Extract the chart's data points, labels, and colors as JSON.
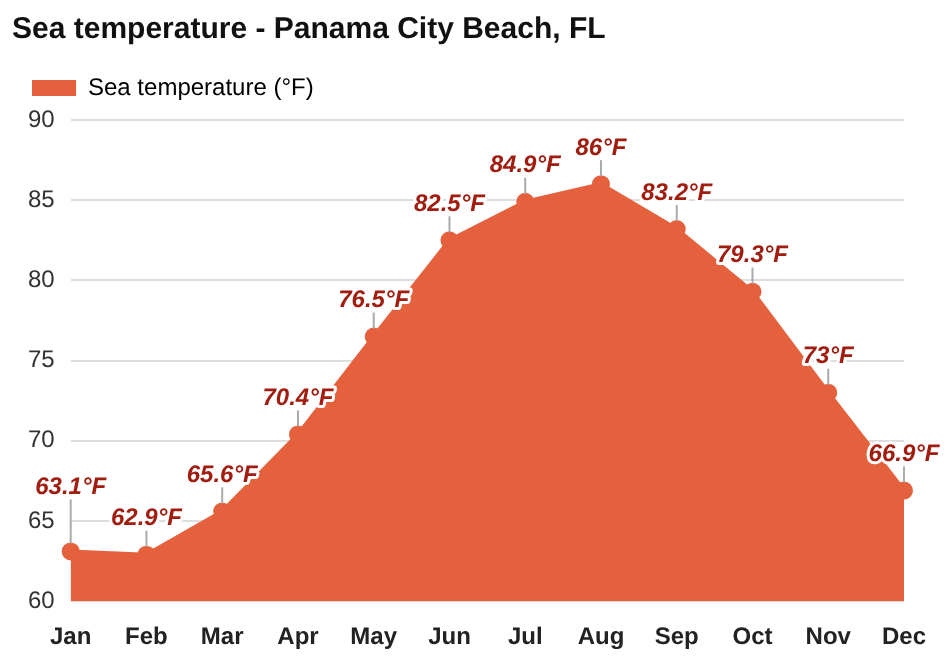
{
  "chart_data": {
    "type": "area",
    "title": "Sea temperature - Panama City Beach, FL",
    "categories": [
      "Jan",
      "Feb",
      "Mar",
      "Apr",
      "May",
      "Jun",
      "Jul",
      "Aug",
      "Sep",
      "Oct",
      "Nov",
      "Dec"
    ],
    "series": [
      {
        "name": "Sea temperature (°F)",
        "color": "#e5603c",
        "values": [
          63.1,
          62.9,
          65.6,
          70.4,
          76.5,
          82.5,
          84.9,
          86,
          83.2,
          79.3,
          73,
          66.9
        ],
        "value_labels": [
          "63.1°F",
          "62.9°F",
          "65.6°F",
          "70.4°F",
          "76.5°F",
          "82.5°F",
          "84.9°F",
          "86°F",
          "83.2°F",
          "79.3°F",
          "73°F",
          "66.9°F"
        ]
      }
    ],
    "ylim": [
      60,
      90
    ],
    "yticks": [
      60,
      65,
      70,
      75,
      80,
      85,
      90
    ],
    "grid": "y",
    "legend": "top left",
    "marker": "circle"
  }
}
